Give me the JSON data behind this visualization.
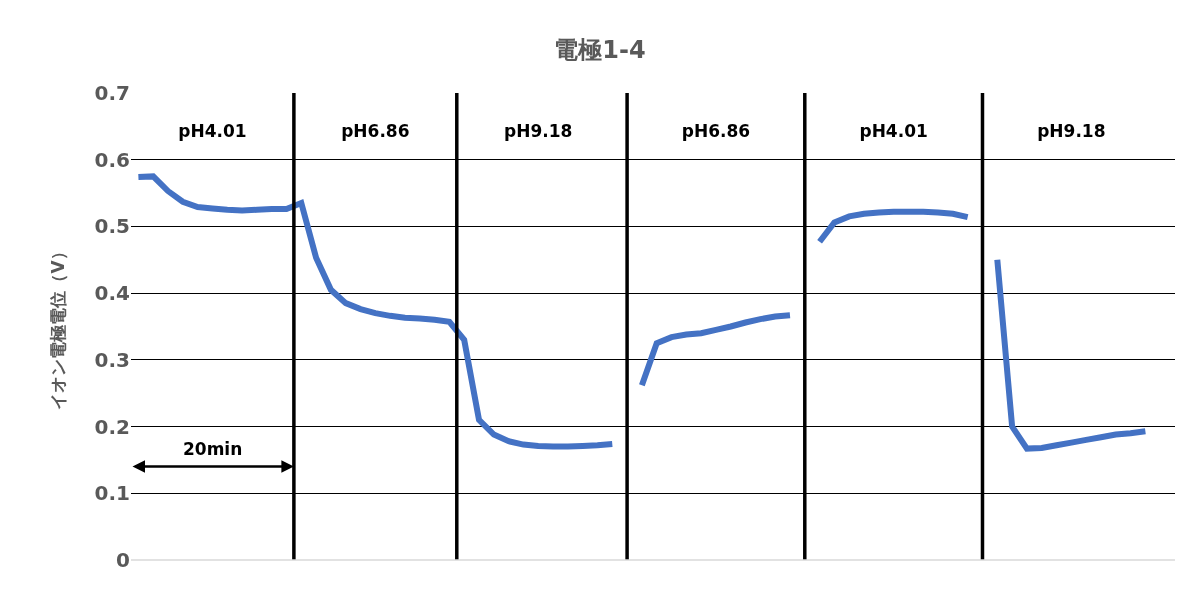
{
  "chart_data": {
    "type": "line",
    "title": "電極1-4",
    "ylabel": "イオン電極電位（V）",
    "categories": [
      null,
      null,
      null,
      null,
      null,
      "pH4.01",
      null,
      null,
      null,
      null,
      null,
      null,
      null,
      null,
      null,
      null,
      "pH6.86",
      null,
      null,
      null,
      null,
      null,
      null,
      null,
      null,
      null,
      null,
      "pH9.18",
      null,
      null,
      null,
      null,
      null,
      null,
      null,
      null,
      null,
      null,
      null,
      "pH6.86",
      null,
      null,
      null,
      null,
      null,
      null,
      null,
      null,
      null,
      null,
      null,
      "pH4.01",
      null,
      null,
      null,
      null,
      null,
      null,
      null,
      null,
      null,
      null,
      null,
      "pH9.18",
      null,
      null,
      null,
      null,
      null
    ],
    "series": [
      {
        "color": "#4472c4",
        "values": [
          0.574,
          0.575,
          0.553,
          0.537,
          0.529,
          0.527,
          0.525,
          0.524,
          0.525,
          0.526,
          0.526,
          0.535,
          0.453,
          0.405,
          0.385,
          0.376,
          0.37,
          0.366,
          0.363,
          0.362,
          0.36,
          0.357,
          0.33,
          0.21,
          0.188,
          0.178,
          0.173,
          0.171,
          0.17,
          0.17,
          0.171,
          0.172,
          0.174,
          null,
          0.262,
          0.325,
          0.334,
          0.338,
          0.34,
          0.345,
          0.35,
          0.356,
          0.361,
          0.365,
          0.367,
          null,
          0.477,
          0.506,
          0.515,
          0.519,
          0.521,
          0.522,
          0.522,
          0.522,
          0.521,
          0.519,
          0.514,
          null,
          0.45,
          0.2,
          0.167,
          0.168,
          0.172,
          0.176,
          0.18,
          0.184,
          0.188,
          0.19,
          0.193
        ]
      }
    ],
    "ylim": [
      0,
      0.7
    ],
    "yticks": [
      0,
      0.1,
      0.2,
      0.3,
      0.4,
      0.5,
      0.6,
      0.7
    ],
    "grid": true,
    "marker": "none",
    "line_style": "solid",
    "annotations": [
      "20min"
    ]
  }
}
